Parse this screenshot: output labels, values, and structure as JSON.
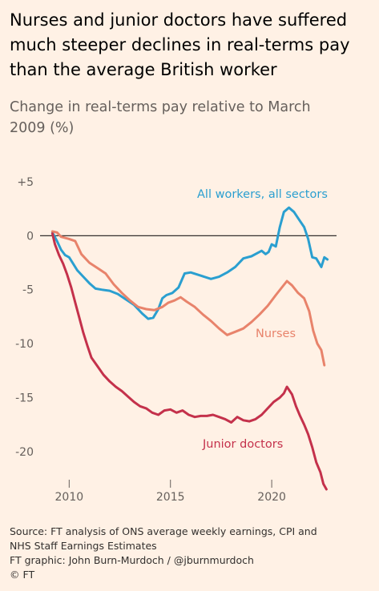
{
  "title": "Nurses and junior doctors have suffered much steeper declines in real-terms pay than the average British worker",
  "subtitle": "Change in real-terms pay relative to March 2009 (%)",
  "source": {
    "line1": "Source: FT analysis of ONS average weekly earnings, CPI and",
    "line2": "NHS Staff Earnings Estimates",
    "line3": "FT graphic: John Burn-Murdoch / @jburnmurdoch",
    "line4": "© FT"
  },
  "chart_data": {
    "type": "line",
    "title": "Nurses and junior doctors have suffered much steeper declines in real-terms pay than the average British worker",
    "ylabel": "Change in real-terms pay relative to March 2009 (%)",
    "xlim": [
      2008.8,
      2023.2
    ],
    "ylim": [
      -23.5,
      5
    ],
    "xticks": [
      2010,
      2015,
      2020
    ],
    "xtick_labels": [
      "2010",
      "2015",
      "2020"
    ],
    "yticks": [
      5,
      0,
      -5,
      -10,
      -15,
      -20
    ],
    "ytick_labels": [
      "+5",
      "0",
      "-5",
      "-10",
      "-15",
      "-20"
    ],
    "grid": false,
    "legend": "direct labels on lines",
    "series": [
      {
        "name": "All workers, all sectors",
        "color": "#2a9fd0",
        "label_text": "All workers, all sectors",
        "points": [
          [
            2009.17,
            0.3
          ],
          [
            2009.4,
            -0.5
          ],
          [
            2009.6,
            -1.3
          ],
          [
            2009.8,
            -1.8
          ],
          [
            2010.0,
            -2.0
          ],
          [
            2010.2,
            -2.6
          ],
          [
            2010.4,
            -3.2
          ],
          [
            2010.7,
            -3.8
          ],
          [
            2011.0,
            -4.4
          ],
          [
            2011.3,
            -4.9
          ],
          [
            2011.6,
            -5.0
          ],
          [
            2012.0,
            -5.1
          ],
          [
            2012.4,
            -5.4
          ],
          [
            2012.8,
            -5.9
          ],
          [
            2013.2,
            -6.4
          ],
          [
            2013.6,
            -7.2
          ],
          [
            2013.9,
            -7.7
          ],
          [
            2014.15,
            -7.6
          ],
          [
            2014.4,
            -6.8
          ],
          [
            2014.6,
            -5.8
          ],
          [
            2014.8,
            -5.5
          ],
          [
            2015.1,
            -5.3
          ],
          [
            2015.4,
            -4.8
          ],
          [
            2015.7,
            -3.5
          ],
          [
            2016.0,
            -3.4
          ],
          [
            2016.5,
            -3.7
          ],
          [
            2017.0,
            -4.0
          ],
          [
            2017.4,
            -3.8
          ],
          [
            2017.8,
            -3.4
          ],
          [
            2018.2,
            -2.9
          ],
          [
            2018.6,
            -2.1
          ],
          [
            2019.0,
            -1.9
          ],
          [
            2019.3,
            -1.6
          ],
          [
            2019.5,
            -1.4
          ],
          [
            2019.7,
            -1.7
          ],
          [
            2019.85,
            -1.5
          ],
          [
            2020.0,
            -0.8
          ],
          [
            2020.2,
            -1.0
          ],
          [
            2020.4,
            0.8
          ],
          [
            2020.6,
            2.2
          ],
          [
            2020.85,
            2.6
          ],
          [
            2021.1,
            2.2
          ],
          [
            2021.35,
            1.5
          ],
          [
            2021.6,
            0.8
          ],
          [
            2021.8,
            -0.3
          ],
          [
            2022.0,
            -2.0
          ],
          [
            2022.2,
            -2.1
          ],
          [
            2022.45,
            -2.9
          ],
          [
            2022.6,
            -2.0
          ],
          [
            2022.75,
            -2.2
          ]
        ]
      },
      {
        "name": "Nurses",
        "color": "#e8836b",
        "label_text": "Nurses",
        "points": [
          [
            2009.17,
            0.4
          ],
          [
            2009.4,
            0.3
          ],
          [
            2009.6,
            -0.1
          ],
          [
            2009.8,
            -0.2
          ],
          [
            2010.0,
            -0.3
          ],
          [
            2010.3,
            -0.5
          ],
          [
            2010.6,
            -1.7
          ],
          [
            2011.0,
            -2.5
          ],
          [
            2011.4,
            -3.0
          ],
          [
            2011.8,
            -3.5
          ],
          [
            2012.2,
            -4.5
          ],
          [
            2012.6,
            -5.3
          ],
          [
            2013.0,
            -6.0
          ],
          [
            2013.4,
            -6.6
          ],
          [
            2013.8,
            -6.8
          ],
          [
            2014.2,
            -6.9
          ],
          [
            2014.6,
            -6.6
          ],
          [
            2014.9,
            -6.2
          ],
          [
            2015.2,
            -6.0
          ],
          [
            2015.5,
            -5.7
          ],
          [
            2015.8,
            -6.1
          ],
          [
            2016.2,
            -6.6
          ],
          [
            2016.6,
            -7.3
          ],
          [
            2017.0,
            -7.9
          ],
          [
            2017.4,
            -8.6
          ],
          [
            2017.8,
            -9.2
          ],
          [
            2018.2,
            -8.9
          ],
          [
            2018.6,
            -8.6
          ],
          [
            2019.0,
            -8.0
          ],
          [
            2019.4,
            -7.3
          ],
          [
            2019.8,
            -6.5
          ],
          [
            2020.2,
            -5.5
          ],
          [
            2020.5,
            -4.8
          ],
          [
            2020.75,
            -4.2
          ],
          [
            2021.0,
            -4.6
          ],
          [
            2021.3,
            -5.3
          ],
          [
            2021.6,
            -5.8
          ],
          [
            2021.85,
            -7.0
          ],
          [
            2022.05,
            -8.8
          ],
          [
            2022.25,
            -10.0
          ],
          [
            2022.45,
            -10.6
          ],
          [
            2022.6,
            -12.0
          ]
        ]
      },
      {
        "name": "Junior doctors",
        "color": "#c4314b",
        "label_text": "Junior doctors",
        "points": [
          [
            2009.17,
            0.2
          ],
          [
            2009.3,
            -0.8
          ],
          [
            2009.5,
            -1.8
          ],
          [
            2009.7,
            -2.6
          ],
          [
            2009.9,
            -3.6
          ],
          [
            2010.1,
            -4.8
          ],
          [
            2010.3,
            -6.2
          ],
          [
            2010.5,
            -7.6
          ],
          [
            2010.7,
            -9.0
          ],
          [
            2010.9,
            -10.2
          ],
          [
            2011.1,
            -11.3
          ],
          [
            2011.4,
            -12.1
          ],
          [
            2011.7,
            -12.9
          ],
          [
            2012.0,
            -13.5
          ],
          [
            2012.3,
            -14.0
          ],
          [
            2012.6,
            -14.4
          ],
          [
            2012.9,
            -14.9
          ],
          [
            2013.2,
            -15.4
          ],
          [
            2013.5,
            -15.8
          ],
          [
            2013.8,
            -16.0
          ],
          [
            2014.1,
            -16.4
          ],
          [
            2014.4,
            -16.6
          ],
          [
            2014.7,
            -16.2
          ],
          [
            2015.0,
            -16.1
          ],
          [
            2015.3,
            -16.4
          ],
          [
            2015.6,
            -16.2
          ],
          [
            2015.9,
            -16.6
          ],
          [
            2016.2,
            -16.8
          ],
          [
            2016.5,
            -16.7
          ],
          [
            2016.8,
            -16.7
          ],
          [
            2017.1,
            -16.6
          ],
          [
            2017.4,
            -16.8
          ],
          [
            2017.7,
            -17.0
          ],
          [
            2018.0,
            -17.3
          ],
          [
            2018.3,
            -16.8
          ],
          [
            2018.6,
            -17.1
          ],
          [
            2018.9,
            -17.2
          ],
          [
            2019.2,
            -17.0
          ],
          [
            2019.5,
            -16.6
          ],
          [
            2019.8,
            -16.0
          ],
          [
            2020.1,
            -15.4
          ],
          [
            2020.4,
            -15.0
          ],
          [
            2020.6,
            -14.6
          ],
          [
            2020.75,
            -14.0
          ],
          [
            2021.0,
            -14.7
          ],
          [
            2021.2,
            -15.8
          ],
          [
            2021.4,
            -16.7
          ],
          [
            2021.6,
            -17.5
          ],
          [
            2021.8,
            -18.4
          ],
          [
            2022.0,
            -19.6
          ],
          [
            2022.2,
            -21.0
          ],
          [
            2022.4,
            -21.9
          ],
          [
            2022.55,
            -23.0
          ],
          [
            2022.7,
            -23.5
          ]
        ]
      }
    ]
  }
}
